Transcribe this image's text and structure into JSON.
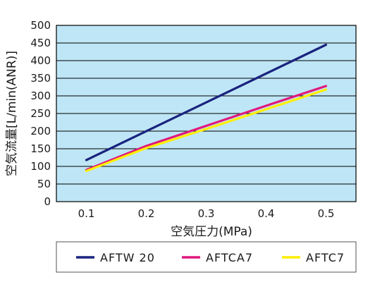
{
  "chart_data": {
    "type": "line",
    "xlabel": "空気圧力(MPa)",
    "ylabel": "空気流量[L/min(ANR)]",
    "x_ticks": [
      "0.1",
      "0.2",
      "0.3",
      "0.4",
      "0.5"
    ],
    "y_ticks": [
      "0",
      "50",
      "100",
      "150",
      "200",
      "250",
      "300",
      "350",
      "400",
      "450",
      "500"
    ],
    "xlim": [
      0.05,
      0.55
    ],
    "ylim": [
      0,
      500
    ],
    "grid": "horizontal",
    "legend_position": "bottom",
    "background_color": "#bfe6f6",
    "series": [
      {
        "name": "AFTW 20",
        "color": "#1a237e",
        "x": [
          0.1,
          0.5
        ],
        "y": [
          118,
          445
        ]
      },
      {
        "name": "AFTCA7",
        "color": "#e0197d",
        "x": [
          0.1,
          0.2,
          0.3,
          0.4,
          0.5
        ],
        "y": [
          90,
          158,
          215,
          272,
          328
        ]
      },
      {
        "name": "AFTC7",
        "color": "#ffee00",
        "x": [
          0.1,
          0.2,
          0.3,
          0.4,
          0.5
        ],
        "y": [
          87,
          152,
          206,
          262,
          318
        ]
      }
    ]
  }
}
